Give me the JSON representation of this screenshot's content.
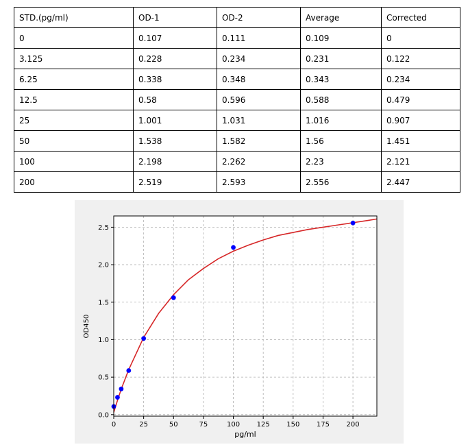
{
  "table": {
    "headers": [
      "STD.(pg/ml)",
      "OD-1",
      "OD-2",
      "Average",
      "Corrected"
    ],
    "rows": [
      [
        "0",
        "0.107",
        "0.111",
        "0.109",
        "0"
      ],
      [
        "3.125",
        "0.228",
        "0.234",
        "0.231",
        "0.122"
      ],
      [
        "6.25",
        "0.338",
        "0.348",
        "0.343",
        "0.234"
      ],
      [
        "12.5",
        "0.58",
        "0.596",
        "0.588",
        "0.479"
      ],
      [
        "25",
        "1.001",
        "1.031",
        "1.016",
        "0.907"
      ],
      [
        "50",
        "1.538",
        "1.582",
        "1.56",
        "1.451"
      ],
      [
        "100",
        "2.198",
        "2.262",
        "2.23",
        "2.121"
      ],
      [
        "200",
        "2.519",
        "2.593",
        "2.556",
        "2.447"
      ]
    ]
  },
  "chart_data": {
    "type": "scatter",
    "xlabel": "pg/ml",
    "ylabel": "OD450",
    "xlim": [
      0,
      220
    ],
    "ylim": [
      -0.02,
      2.65
    ],
    "xticks": [
      "0",
      "25",
      "50",
      "75",
      "100",
      "125",
      "150",
      "175",
      "200"
    ],
    "yticks": [
      "0.0",
      "0.5",
      "1.0",
      "1.5",
      "2.0",
      "2.5"
    ],
    "grid": true,
    "series": [
      {
        "kind": "points",
        "color": "#0000ff",
        "x": [
          0,
          3.125,
          6.25,
          12.5,
          25,
          50,
          100,
          200
        ],
        "y": [
          0.109,
          0.231,
          0.343,
          0.588,
          1.016,
          1.56,
          2.23,
          2.556
        ]
      },
      {
        "kind": "fitted-curve",
        "color": "#d62728",
        "x": [
          0,
          3.125,
          6.25,
          12.5,
          25,
          37.5,
          50,
          62.5,
          75,
          87.5,
          100,
          112.5,
          125,
          137.5,
          150,
          162.5,
          175,
          187.5,
          200,
          212.5,
          220
        ],
        "y": [
          0.03,
          0.19,
          0.34,
          0.6,
          1.03,
          1.35,
          1.6,
          1.8,
          1.95,
          2.08,
          2.18,
          2.26,
          2.33,
          2.39,
          2.43,
          2.47,
          2.5,
          2.53,
          2.56,
          2.59,
          2.61
        ]
      }
    ]
  }
}
